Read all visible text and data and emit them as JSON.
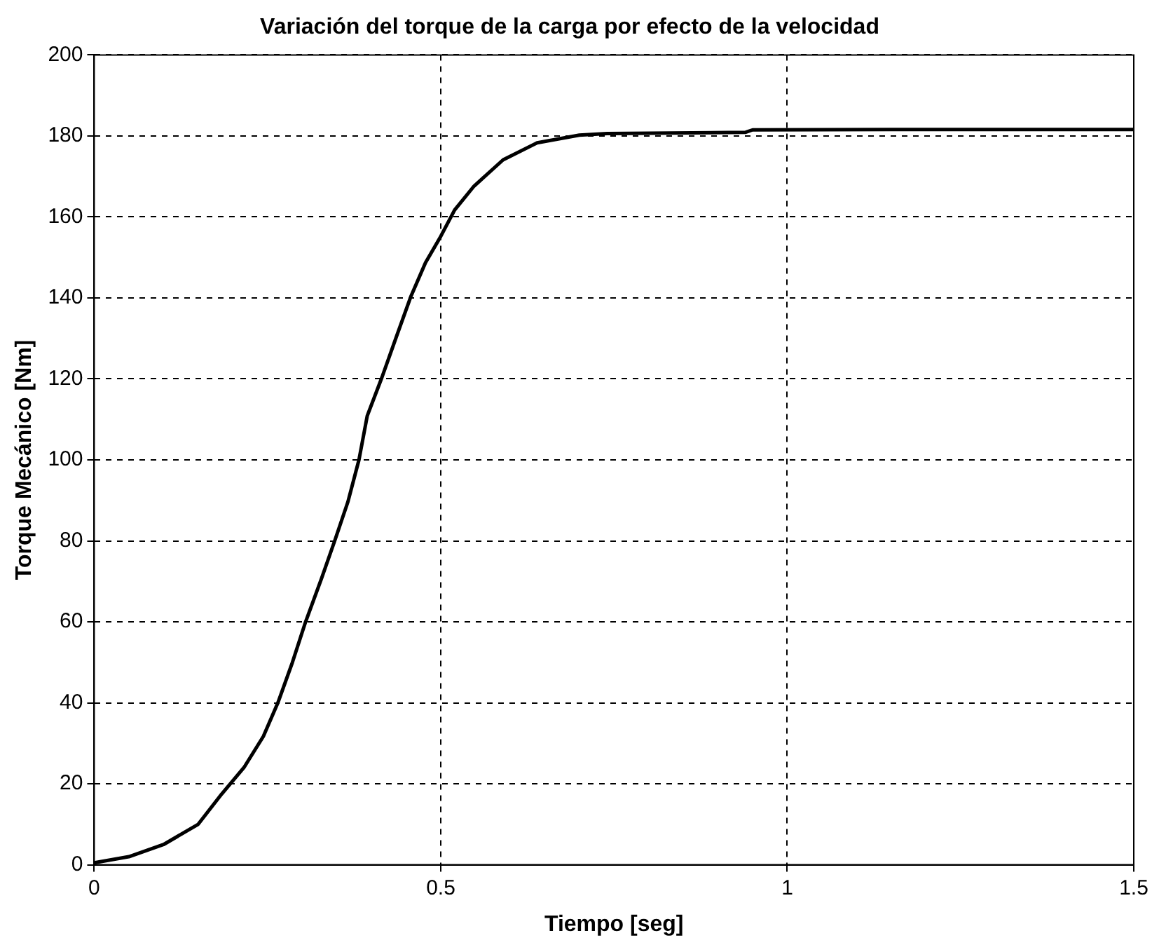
{
  "chart_data": {
    "type": "line",
    "title": "Variación del torque de la carga por efecto de la velocidad",
    "xlabel": "Tiempo [seg]",
    "ylabel": "Torque Mecánico [Nm]",
    "x": [
      0,
      0.05,
      0.1,
      0.15,
      0.184,
      0.216,
      0.244,
      0.265,
      0.286,
      0.305,
      0.328,
      0.347,
      0.366,
      0.382,
      0.394,
      0.415,
      0.436,
      0.457,
      0.478,
      0.5,
      0.52,
      0.548,
      0.59,
      0.639,
      0.7,
      0.74,
      0.94,
      0.95,
      1.2,
      1.5
    ],
    "series": [
      {
        "color": "#000000",
        "values": [
          0.5,
          2,
          5,
          10,
          17.5,
          24,
          31.7,
          40,
          50,
          60,
          70.7,
          80,
          89.6,
          100,
          110.9,
          120.3,
          130.4,
          140.4,
          148.7,
          155.2,
          161.7,
          167.6,
          174.1,
          178.3,
          180.2,
          180.6,
          180.9,
          181.5,
          181.6,
          181.6
        ]
      }
    ],
    "xlim": [
      0,
      1.5
    ],
    "xticks": [
      0,
      0.5,
      1,
      1.5
    ],
    "ylim": [
      0,
      200
    ],
    "yticks": [
      0,
      20,
      40,
      60,
      80,
      100,
      120,
      140,
      160,
      180,
      200
    ],
    "grid": true,
    "legend": false,
    "marker": "none",
    "line_style": "solid"
  }
}
